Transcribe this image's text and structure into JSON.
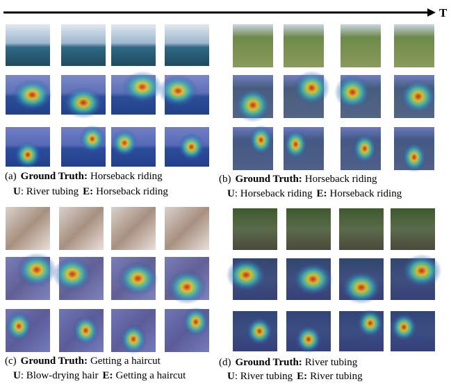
{
  "axis_label": "T",
  "panels": [
    {
      "label": "(a)",
      "gt_label": "Ground Truth:",
      "gt": "Horseback riding",
      "u_label": "U",
      "u_text": ": River tubing",
      "e_label": "E:",
      "e": "Horseback riding"
    },
    {
      "label": "(b)",
      "gt_label": "Ground Truth:",
      "gt": "Horseback riding",
      "u_label": "U",
      "u_text": ": Horseback riding",
      "e_label": "E:",
      "e": "Horseback riding"
    },
    {
      "label": "(c)",
      "gt_label": "Ground Truth:",
      "gt": "Getting a haircut",
      "u_label": "U",
      "u_text": ": Blow-drying hair",
      "e_label": "E:",
      "e": "Getting a haircut"
    },
    {
      "label": "(d)",
      "gt_label": "Ground Truth:",
      "gt": "River tubing",
      "u_label": "U",
      "u_text": ": River tubing",
      "e_label": "E:",
      "e": "River tubing"
    }
  ]
}
